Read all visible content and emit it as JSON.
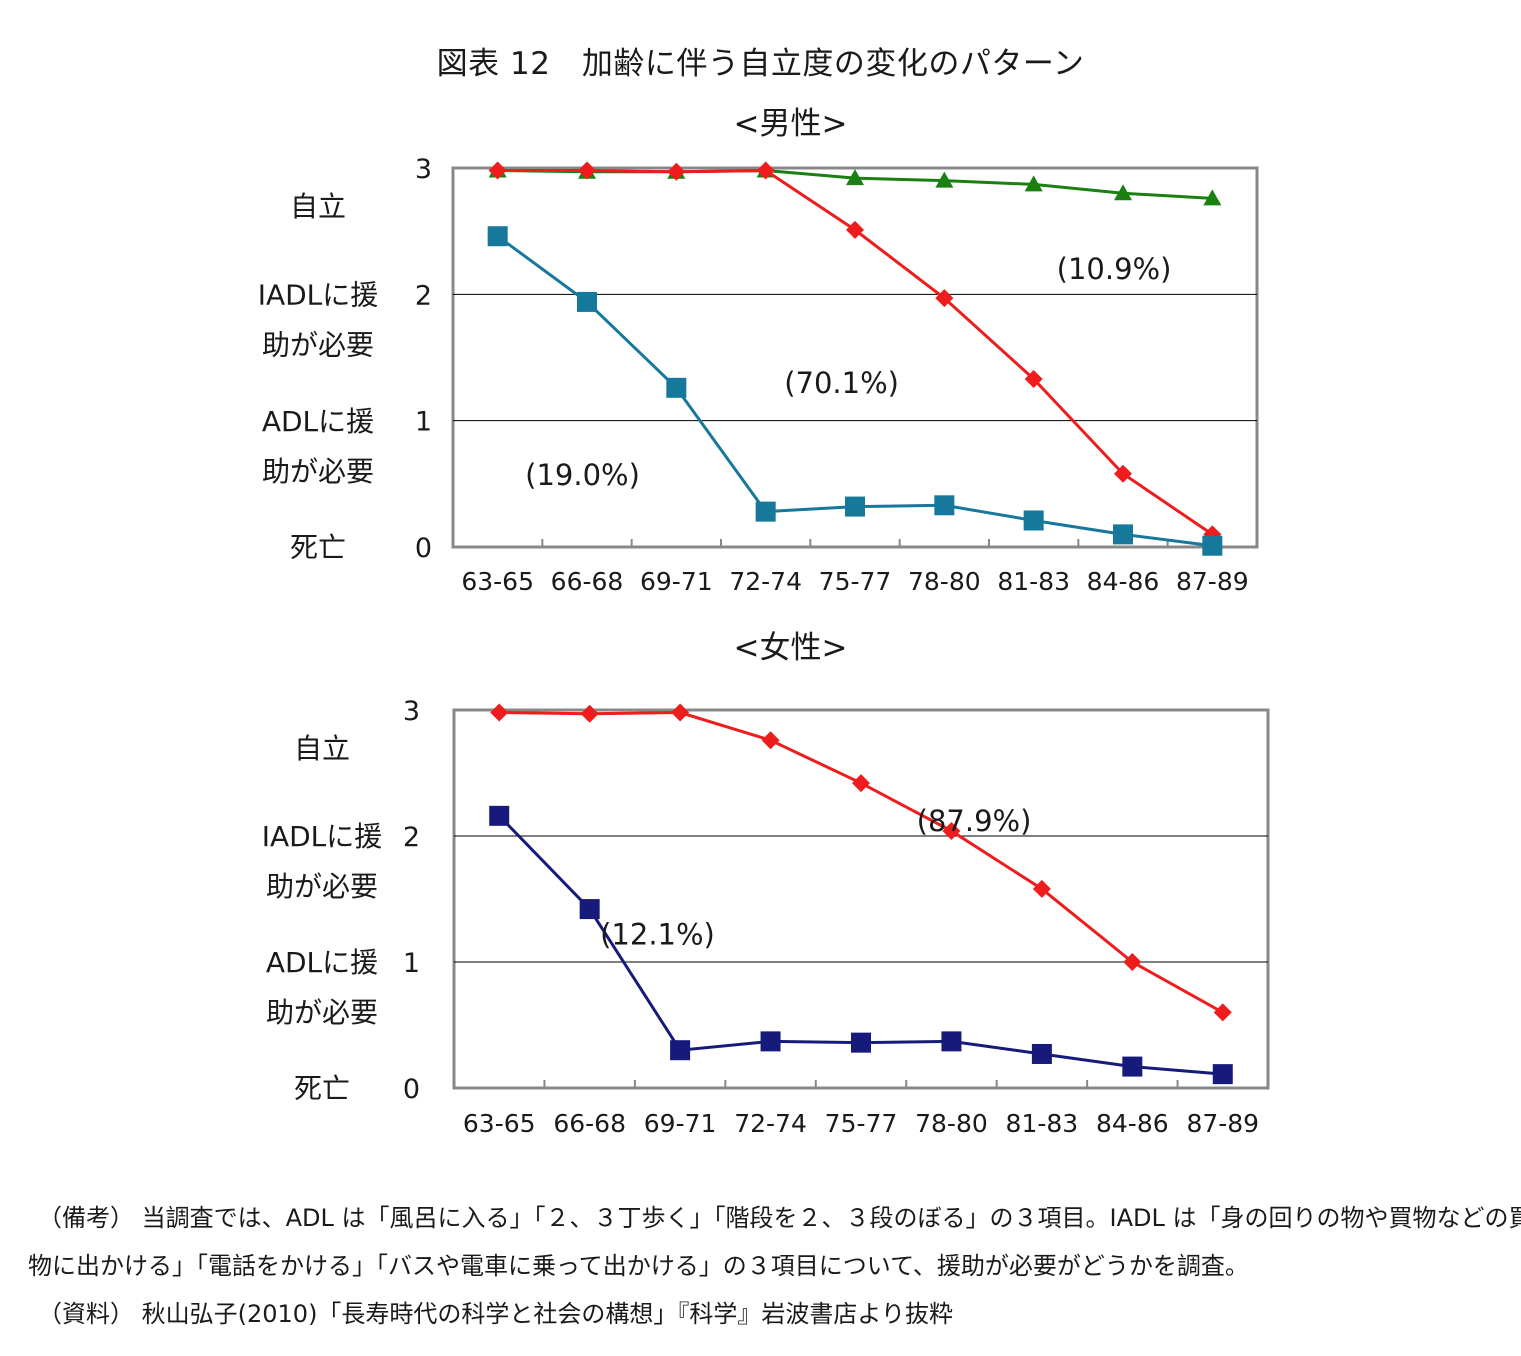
{
  "figure_title": "図表 12　加齢に伴う自立度の変化のパターン",
  "notes": {
    "line1": "（備考） 当調査では、ADL は「風呂に入る」「２、３丁歩く」「階段を２、３段のぼる」の３項目。IADL は「身の回りの物や買物などの買い",
    "line2": "物に出かける」「電話をかける」「バスや電車に乗って出かける」の３項目について、援助が必要がどうかを調査。",
    "line3": "（資料） 秋山弘子(2010)「長寿時代の科学と社会の構想」『科学』岩波書店より抜粋"
  },
  "chart_data": [
    {
      "type": "line",
      "title": "<男性>",
      "categories": [
        "63-65",
        "66-68",
        "69-71",
        "72-74",
        "75-77",
        "78-80",
        "81-83",
        "84-86",
        "87-89"
      ],
      "ylim": [
        0,
        3
      ],
      "yticks": [
        "0",
        "1",
        "2",
        "3"
      ],
      "grid": true,
      "y_level_labels": [
        {
          "value": 2.7,
          "lines": [
            "自立"
          ]
        },
        {
          "value": 1.8,
          "lines": [
            "IADLに援",
            "助が必要"
          ]
        },
        {
          "value": 0.8,
          "lines": [
            "ADLに援",
            "助が必要"
          ]
        },
        {
          "value": 0.0,
          "lines": [
            "死亡"
          ]
        }
      ],
      "series": [
        {
          "values": [
            2.98,
            2.97,
            2.97,
            2.98,
            2.92,
            2.9,
            2.87,
            2.8,
            2.76
          ],
          "color": "#1a8012",
          "marker": "triangle"
        },
        {
          "values": [
            2.98,
            2.98,
            2.97,
            2.98,
            2.51,
            1.97,
            1.33,
            0.58,
            0.1
          ],
          "color": "#ee1c1c",
          "marker": "diamond"
        },
        {
          "values": [
            2.46,
            1.94,
            1.26,
            0.28,
            0.32,
            0.33,
            0.21,
            0.1,
            0.01
          ],
          "color": "#16789a",
          "marker": "square"
        }
      ],
      "annotations": [
        {
          "text": "(10.9%)",
          "x": 7.4,
          "y": 2.2
        },
        {
          "text": "(70.1%)",
          "x": 4.35,
          "y": 1.3
        },
        {
          "text": "(19.0%)",
          "x": 1.45,
          "y": 0.57
        }
      ]
    },
    {
      "type": "line",
      "title": "<女性>",
      "categories": [
        "63-65",
        "66-68",
        "69-71",
        "72-74",
        "75-77",
        "78-80",
        "81-83",
        "84-86",
        "87-89"
      ],
      "ylim": [
        0,
        3
      ],
      "yticks": [
        "0",
        "1",
        "2",
        "3"
      ],
      "grid": true,
      "y_level_labels": [
        {
          "value": 2.7,
          "lines": [
            "自立"
          ]
        },
        {
          "value": 1.8,
          "lines": [
            "IADLに援",
            "助が必要"
          ]
        },
        {
          "value": 0.8,
          "lines": [
            "ADLに援",
            "助が必要"
          ]
        },
        {
          "value": 0.0,
          "lines": [
            "死亡"
          ]
        }
      ],
      "series": [
        {
          "values": [
            2.98,
            2.97,
            2.98,
            2.76,
            2.42,
            2.04,
            1.58,
            1.0,
            0.6
          ],
          "color": "#ee1c1c",
          "marker": "diamond"
        },
        {
          "values": [
            2.16,
            1.42,
            0.3,
            0.37,
            0.36,
            0.37,
            0.27,
            0.17,
            0.11
          ],
          "color": "#161a7a",
          "marker": "square"
        }
      ],
      "annotations": [
        {
          "text": "(87.9%)",
          "x": 5.75,
          "y": 2.12
        },
        {
          "text": "(12.1%)",
          "x": 2.25,
          "y": 1.22
        }
      ]
    }
  ]
}
